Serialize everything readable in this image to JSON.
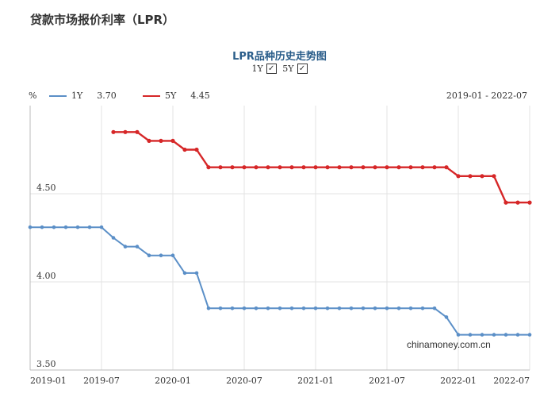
{
  "page": {
    "title": "贷款市场报价利率（LPR）"
  },
  "chart": {
    "title": "LPR品种历史走势图",
    "toggles": [
      {
        "label": "1Y",
        "checked": true
      },
      {
        "label": "5Y",
        "checked": true
      }
    ],
    "unit": "%",
    "range_text": "2019-01 - 2022-07",
    "watermark": "chinamoney.com.cn"
  },
  "chart_data": {
    "type": "line",
    "xlim": [
      "2019-01",
      "2022-07"
    ],
    "ylim": [
      3.5,
      5.0
    ],
    "yticks": [
      {
        "value": 3.5,
        "label": "3.50"
      },
      {
        "value": 4.0,
        "label": "4.00"
      },
      {
        "value": 4.5,
        "label": "4.50"
      }
    ],
    "xticks": [
      "2019-01",
      "2019-07",
      "2020-01",
      "2020-07",
      "2021-01",
      "2021-07",
      "2022-01",
      "2022-07"
    ],
    "grid": true,
    "series": [
      {
        "name": "1Y",
        "latest": "3.70",
        "color": "#5b8fc7",
        "points": [
          [
            "2019-01",
            4.31
          ],
          [
            "2019-02",
            4.31
          ],
          [
            "2019-03",
            4.31
          ],
          [
            "2019-04",
            4.31
          ],
          [
            "2019-05",
            4.31
          ],
          [
            "2019-06",
            4.31
          ],
          [
            "2019-07",
            4.31
          ],
          [
            "2019-08",
            4.25
          ],
          [
            "2019-09",
            4.2
          ],
          [
            "2019-10",
            4.2
          ],
          [
            "2019-11",
            4.15
          ],
          [
            "2019-12",
            4.15
          ],
          [
            "2020-01",
            4.15
          ],
          [
            "2020-02",
            4.05
          ],
          [
            "2020-03",
            4.05
          ],
          [
            "2020-04",
            3.85
          ],
          [
            "2020-05",
            3.85
          ],
          [
            "2020-06",
            3.85
          ],
          [
            "2020-07",
            3.85
          ],
          [
            "2020-08",
            3.85
          ],
          [
            "2020-09",
            3.85
          ],
          [
            "2020-10",
            3.85
          ],
          [
            "2020-11",
            3.85
          ],
          [
            "2020-12",
            3.85
          ],
          [
            "2021-01",
            3.85
          ],
          [
            "2021-02",
            3.85
          ],
          [
            "2021-03",
            3.85
          ],
          [
            "2021-04",
            3.85
          ],
          [
            "2021-05",
            3.85
          ],
          [
            "2021-06",
            3.85
          ],
          [
            "2021-07",
            3.85
          ],
          [
            "2021-08",
            3.85
          ],
          [
            "2021-09",
            3.85
          ],
          [
            "2021-10",
            3.85
          ],
          [
            "2021-11",
            3.85
          ],
          [
            "2021-12",
            3.8
          ],
          [
            "2022-01",
            3.7
          ],
          [
            "2022-02",
            3.7
          ],
          [
            "2022-03",
            3.7
          ],
          [
            "2022-04",
            3.7
          ],
          [
            "2022-05",
            3.7
          ],
          [
            "2022-06",
            3.7
          ],
          [
            "2022-07",
            3.7
          ]
        ]
      },
      {
        "name": "5Y",
        "latest": "4.45",
        "color": "#d62728",
        "points": [
          [
            "2019-08",
            4.85
          ],
          [
            "2019-09",
            4.85
          ],
          [
            "2019-10",
            4.85
          ],
          [
            "2019-11",
            4.8
          ],
          [
            "2019-12",
            4.8
          ],
          [
            "2020-01",
            4.8
          ],
          [
            "2020-02",
            4.75
          ],
          [
            "2020-03",
            4.75
          ],
          [
            "2020-04",
            4.65
          ],
          [
            "2020-05",
            4.65
          ],
          [
            "2020-06",
            4.65
          ],
          [
            "2020-07",
            4.65
          ],
          [
            "2020-08",
            4.65
          ],
          [
            "2020-09",
            4.65
          ],
          [
            "2020-10",
            4.65
          ],
          [
            "2020-11",
            4.65
          ],
          [
            "2020-12",
            4.65
          ],
          [
            "2021-01",
            4.65
          ],
          [
            "2021-02",
            4.65
          ],
          [
            "2021-03",
            4.65
          ],
          [
            "2021-04",
            4.65
          ],
          [
            "2021-05",
            4.65
          ],
          [
            "2021-06",
            4.65
          ],
          [
            "2021-07",
            4.65
          ],
          [
            "2021-08",
            4.65
          ],
          [
            "2021-09",
            4.65
          ],
          [
            "2021-10",
            4.65
          ],
          [
            "2021-11",
            4.65
          ],
          [
            "2021-12",
            4.65
          ],
          [
            "2022-01",
            4.6
          ],
          [
            "2022-02",
            4.6
          ],
          [
            "2022-03",
            4.6
          ],
          [
            "2022-04",
            4.6
          ],
          [
            "2022-05",
            4.45
          ],
          [
            "2022-06",
            4.45
          ],
          [
            "2022-07",
            4.45
          ]
        ]
      }
    ]
  }
}
